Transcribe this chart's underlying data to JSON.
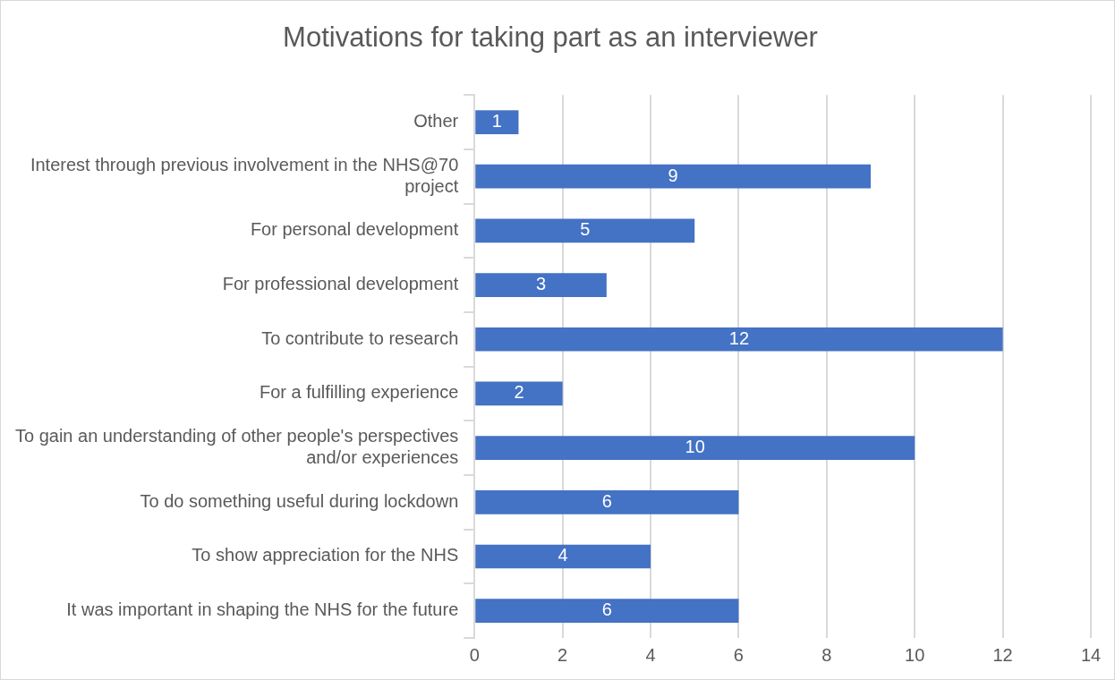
{
  "chart_data": {
    "type": "bar",
    "orientation": "horizontal",
    "title": "Motivations for taking part as an interviewer",
    "categories": [
      "Other",
      "Interest through previous involvement in the NHS@70 project",
      "For personal development",
      "For professional development",
      "To contribute to research",
      "For a fulfilling experience",
      "To gain an understanding of other people's perspectives and/or experiences",
      "To do something useful during lockdown",
      "To show appreciation for the NHS",
      "It was important in shaping the NHS for the future"
    ],
    "values": [
      1,
      9,
      5,
      3,
      12,
      2,
      10,
      6,
      4,
      6
    ],
    "color": "#4472c4",
    "xlim": [
      0,
      14
    ],
    "xticks": [
      0,
      2,
      4,
      6,
      8,
      10,
      12,
      14
    ],
    "grid": "x",
    "legend": false,
    "data_labels": true
  }
}
